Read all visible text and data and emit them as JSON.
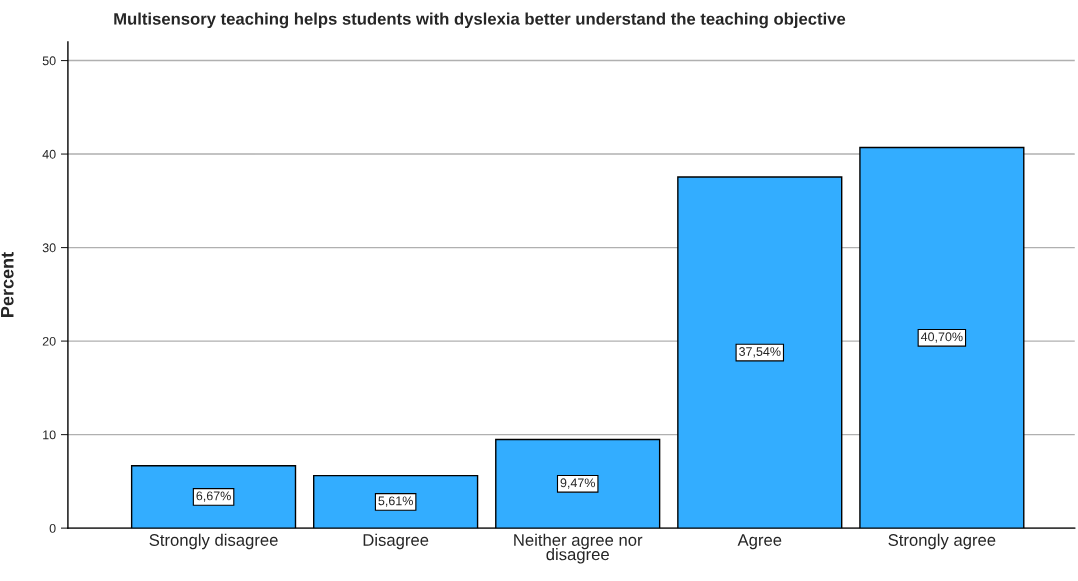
{
  "chart_data": {
    "type": "bar",
    "title": "Multisensory teaching helps students with dyslexia better understand the teaching objective",
    "ylabel": "Percent",
    "categories": [
      "Strongly disagree",
      "Disagree",
      "Neither agree nor disagree",
      "Agree",
      "Strongly agree"
    ],
    "values": [
      6.67,
      5.61,
      9.47,
      37.54,
      40.7
    ],
    "value_labels": [
      "6,67%",
      "5,61%",
      "9,47%",
      "37,54%",
      "40,70%"
    ],
    "color": "#33adff",
    "ylim": [
      0,
      52
    ],
    "yticks": [
      0,
      10,
      20,
      30,
      40,
      50
    ],
    "grid": "y"
  }
}
